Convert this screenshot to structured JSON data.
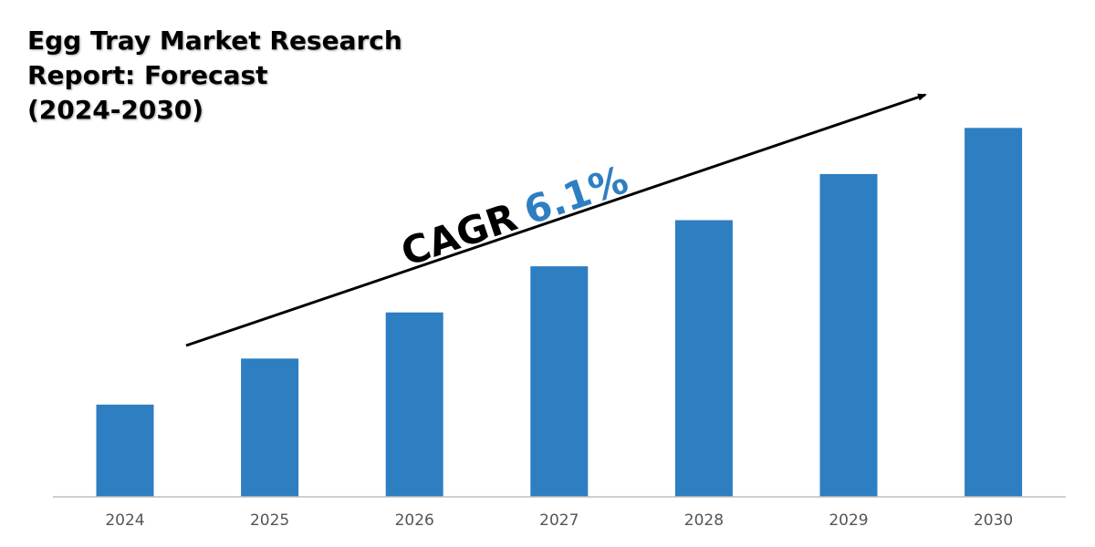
{
  "title_lines": [
    "Egg Tray Market Research",
    "Report: Forecast",
    "(2024-2030)"
  ],
  "cagr": {
    "label": "CAGR",
    "value": "6.1%"
  },
  "colors": {
    "bar": "#2e7ec2",
    "axis": "#bfbfbf",
    "tick_text": "#555555",
    "cagr_value": "#2e7ec2"
  },
  "chart_data": {
    "type": "bar",
    "title": "Egg Tray Market Research Report: Forecast (2024-2030)",
    "categories": [
      "2024",
      "2025",
      "2026",
      "2027",
      "2028",
      "2029",
      "2030"
    ],
    "values": [
      1.0,
      1.5,
      2.0,
      2.5,
      3.0,
      3.5,
      4.0
    ],
    "xlabel": "",
    "ylabel": "",
    "ylim": [
      0,
      4.3
    ],
    "grid": false,
    "legend": "none",
    "annotation": "CAGR 6.1%"
  }
}
